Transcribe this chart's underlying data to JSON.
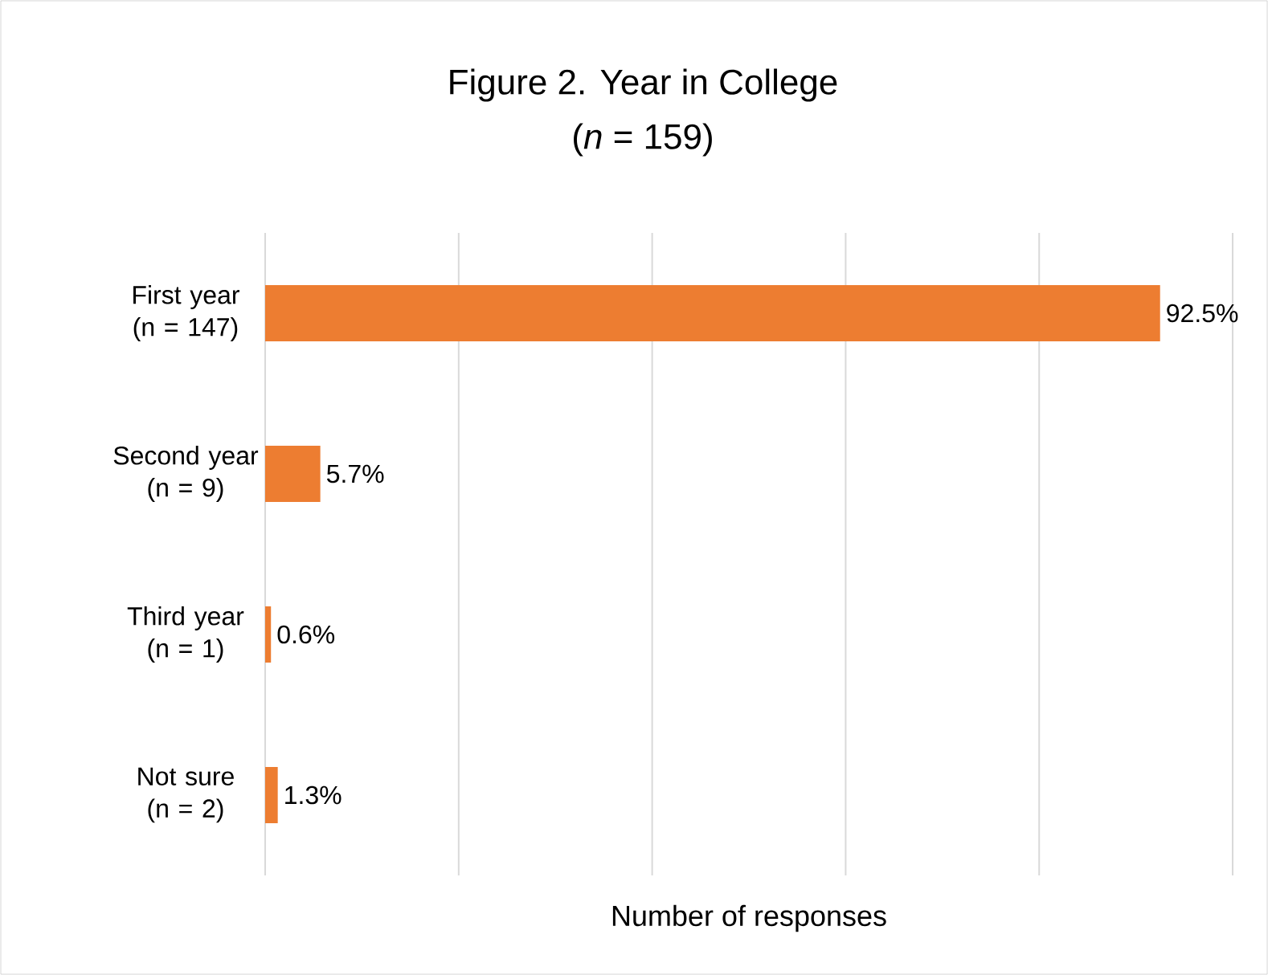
{
  "chart_data": {
    "type": "bar",
    "orientation": "horizontal",
    "title": "Figure 2. Year in College",
    "subtitle": "(*n* = 159)",
    "xlabel": "Number of responses",
    "categories": [
      "First year (n = 147)",
      "Second year (n = 9)",
      "Third year (n = 1)",
      "Not sure (n = 2)"
    ],
    "values": [
      92.5,
      5.7,
      0.6,
      1.3
    ],
    "value_labels": [
      "92.5%",
      "5.7%",
      "0.6%",
      "1.3%"
    ],
    "color": "#ed7d31",
    "xlim": [
      0,
      100
    ],
    "xticks": [
      {
        "value": 0,
        "label": null
      },
      {
        "value": 20,
        "label": null
      },
      {
        "value": 40,
        "label": null
      },
      {
        "value": 60,
        "label": null
      },
      {
        "value": 80,
        "label": null
      },
      {
        "value": 100,
        "label": null
      }
    ],
    "grid": "x",
    "tick_labels": "y"
  }
}
